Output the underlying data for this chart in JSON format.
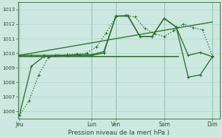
{
  "background_color": "#cce8e0",
  "grid_color": "#aad4cc",
  "line_color": "#2d6e2d",
  "x_ticks_labels": [
    "Jeu",
    "Lun",
    "Ven",
    "Sam",
    "Dim"
  ],
  "x_ticks_pos": [
    0,
    3,
    4,
    6,
    8
  ],
  "xlabel": "Pression niveau de la mer( hPa )",
  "ylim": [
    1005.5,
    1013.5
  ],
  "yticks": [
    1006,
    1007,
    1008,
    1009,
    1010,
    1011,
    1012,
    1013
  ],
  "xlim": [
    -0.05,
    8.3
  ],
  "series": [
    {
      "x": [
        0,
        0.4,
        0.8,
        1.2,
        1.6,
        2.0,
        2.4,
        2.8,
        3.2,
        3.6,
        4.0,
        4.4,
        4.8,
        5.2,
        5.6,
        6.0,
        6.4,
        6.8,
        7.2,
        7.6,
        8.0
      ],
      "y": [
        1005.7,
        1006.7,
        1008.5,
        1009.7,
        1009.85,
        1009.9,
        1009.95,
        1010.0,
        1010.45,
        1011.4,
        1012.5,
        1012.6,
        1012.5,
        1011.7,
        1011.35,
        1011.15,
        1011.55,
        1012.0,
        1011.75,
        1011.6,
        1009.8
      ],
      "linestyle": ":",
      "marker": "+",
      "ms": 3.5,
      "lw": 1.0,
      "zorder": 3
    },
    {
      "x": [
        0,
        0.5,
        1.0,
        1.5,
        2.0,
        2.5,
        3.0,
        3.5,
        4.0,
        4.5,
        5.0,
        5.5,
        6.0,
        6.5,
        7.0,
        7.5,
        8.0
      ],
      "y": [
        1005.7,
        1009.1,
        1009.75,
        1009.85,
        1009.85,
        1009.9,
        1009.9,
        1010.1,
        1012.55,
        1012.6,
        1011.15,
        1011.15,
        1012.4,
        1011.8,
        1009.85,
        1010.05,
        1009.75
      ],
      "linestyle": "-",
      "marker": "+",
      "ms": 3.5,
      "lw": 1.0,
      "zorder": 3
    },
    {
      "x": [
        0.0,
        8.0
      ],
      "y": [
        1009.85,
        1012.15
      ],
      "linestyle": "-",
      "marker": null,
      "ms": 0,
      "lw": 1.0,
      "zorder": 2
    },
    {
      "x": [
        0.0,
        6.6
      ],
      "y": [
        1009.75,
        1009.75
      ],
      "linestyle": "-",
      "marker": null,
      "ms": 0,
      "lw": 1.2,
      "zorder": 2
    },
    {
      "x": [
        0,
        0.5,
        1.0,
        1.5,
        2.0,
        2.5,
        3.0,
        3.5,
        4.0,
        4.5,
        5.0,
        5.5,
        6.0,
        6.5,
        7.0,
        7.5,
        8.0
      ],
      "y": [
        1009.85,
        1009.85,
        1009.85,
        1009.85,
        1009.85,
        1009.85,
        1009.85,
        1010.0,
        1012.55,
        1012.55,
        1011.15,
        1011.15,
        1012.4,
        1011.8,
        1008.35,
        1008.5,
        1009.75
      ],
      "linestyle": "-",
      "marker": "+",
      "ms": 3.5,
      "lw": 1.0,
      "zorder": 3
    }
  ]
}
